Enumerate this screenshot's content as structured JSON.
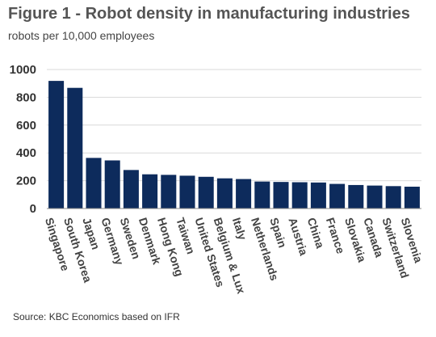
{
  "header": {
    "title": "Figure 1 - Robot density in manufacturing industries",
    "subtitle": "robots per 10,000 employees"
  },
  "footer": {
    "source": "Source: KBC Economics based on IFR"
  },
  "colors": {
    "bar": "#0d2b5c",
    "grid": "#d9d9d9",
    "axis": "#888888"
  },
  "chart_data": {
    "type": "bar",
    "title": "Figure 1 - Robot density in manufacturing industries",
    "subtitle": "robots per 10,000 employees",
    "xlabel": "",
    "ylabel": "",
    "ylim": [
      0,
      1000
    ],
    "yticks": [
      0,
      200,
      400,
      600,
      800,
      1000
    ],
    "grid": true,
    "categories": [
      "Singapore",
      "South Korea",
      "Japan",
      "Germany",
      "Sweden",
      "Denmark",
      "Hong Kong",
      "Taiwan",
      "United States",
      "Belgium & Lux",
      "Italy",
      "Netherlands",
      "Spain",
      "Austria",
      "China",
      "France",
      "Slovakia",
      "Canada",
      "Switzerland",
      "Slovenia"
    ],
    "values": [
      918,
      868,
      364,
      346,
      277,
      246,
      242,
      236,
      228,
      217,
      212,
      194,
      191,
      189,
      187,
      177,
      169,
      165,
      161,
      157
    ]
  }
}
